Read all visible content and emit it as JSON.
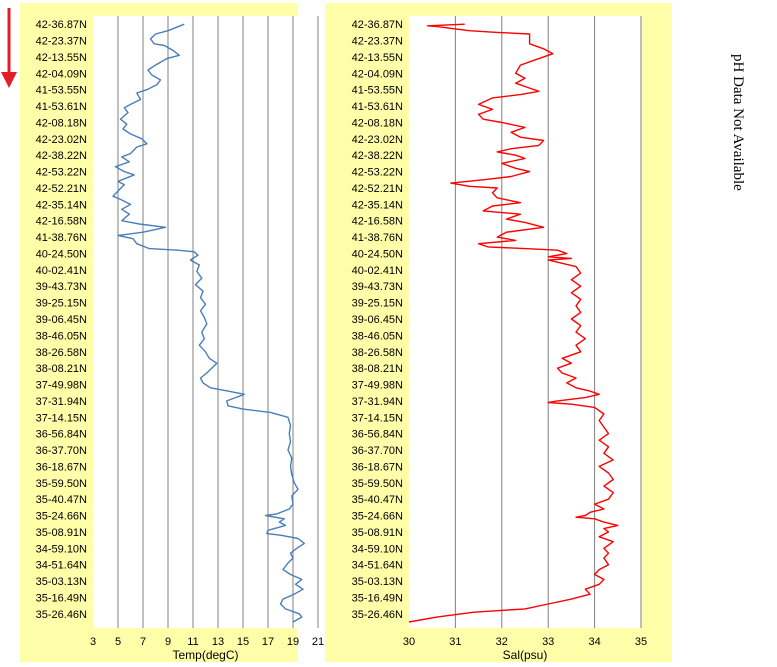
{
  "chart_data": [
    {
      "type": "line",
      "xlabel": "Temp(degC)",
      "xlim": [
        3,
        21
      ],
      "xticks": [
        3,
        5,
        7,
        9,
        11,
        13,
        15,
        17,
        19,
        21
      ],
      "ylabel": "",
      "ycategories": [
        "42-36.87N",
        "42-23.37N",
        "42-13.55N",
        "42-04.09N",
        "41-53.55N",
        "41-53.61N",
        "42-08.18N",
        "42-23.02N",
        "42-38.22N",
        "42-53.22N",
        "42-52.21N",
        "42-35.14N",
        "42-16.58N",
        "41-38.76N",
        "40-24.50N",
        "40-02.41N",
        "39-43.73N",
        "39-25.15N",
        "39-06.45N",
        "38-46.05N",
        "38-26.58N",
        "38-08.21N",
        "37-49.98N",
        "37-31.94N",
        "37-14.15N",
        "36-56.84N",
        "36-37.70N",
        "36-18.67N",
        "35-59.50N",
        "35-40.47N",
        "35-24.66N",
        "35-08.91N",
        "34-59.10N",
        "34-51.64N",
        "35-03.13N",
        "35-16.49N",
        "35-26.46N"
      ],
      "series": [
        {
          "color": "#4A7EBB",
          "points": [
            [
              10.3,
              0
            ],
            [
              9.0,
              0.4
            ],
            [
              8.0,
              0.6
            ],
            [
              7.6,
              0.9
            ],
            [
              7.9,
              1.2
            ],
            [
              8.7,
              1.3
            ],
            [
              9.4,
              1.6
            ],
            [
              9.9,
              1.9
            ],
            [
              8.9,
              2.1
            ],
            [
              8.0,
              2.5
            ],
            [
              7.4,
              2.8
            ],
            [
              7.7,
              3.1
            ],
            [
              8.4,
              3.4
            ],
            [
              8.1,
              3.7
            ],
            [
              7.3,
              4.0
            ],
            [
              6.5,
              4.2
            ],
            [
              6.8,
              4.6
            ],
            [
              6.0,
              4.9
            ],
            [
              5.5,
              5.1
            ],
            [
              5.8,
              5.4
            ],
            [
              5.2,
              5.8
            ],
            [
              5.7,
              6.1
            ],
            [
              5.4,
              6.4
            ],
            [
              6.0,
              6.7
            ],
            [
              6.9,
              7.0
            ],
            [
              7.3,
              7.3
            ],
            [
              6.5,
              7.5
            ],
            [
              6.0,
              7.9
            ],
            [
              5.3,
              8.1
            ],
            [
              5.9,
              8.4
            ],
            [
              4.8,
              8.7
            ],
            [
              5.5,
              9.0
            ],
            [
              6.3,
              9.2
            ],
            [
              5.0,
              9.6
            ],
            [
              5.5,
              9.8
            ],
            [
              5.1,
              10.1
            ],
            [
              4.6,
              10.5
            ],
            [
              5.2,
              10.7
            ],
            [
              6.0,
              11.0
            ],
            [
              5.3,
              11.3
            ],
            [
              5.9,
              11.6
            ],
            [
              5.3,
              12.0
            ],
            [
              6.7,
              12.2
            ],
            [
              8.8,
              12.4
            ],
            [
              7.0,
              12.7
            ],
            [
              5.0,
              12.9
            ],
            [
              6.2,
              13.1
            ],
            [
              6.5,
              13.4
            ],
            [
              7.5,
              13.7
            ],
            [
              9.8,
              13.8
            ],
            [
              11.1,
              13.9
            ],
            [
              11.4,
              14.1
            ],
            [
              10.8,
              14.4
            ],
            [
              11.5,
              14.7
            ],
            [
              11.3,
              15.1
            ],
            [
              11.7,
              15.5
            ],
            [
              11.2,
              15.9
            ],
            [
              11.8,
              16.3
            ],
            [
              11.6,
              16.7
            ],
            [
              12.0,
              17.1
            ],
            [
              11.6,
              17.5
            ],
            [
              11.9,
              17.9
            ],
            [
              12.1,
              18.3
            ],
            [
              11.7,
              18.8
            ],
            [
              11.9,
              19.2
            ],
            [
              11.5,
              19.6
            ],
            [
              12.0,
              20.0
            ],
            [
              12.3,
              20.4
            ],
            [
              12.9,
              20.7
            ],
            [
              12.5,
              21.0
            ],
            [
              12.1,
              21.3
            ],
            [
              11.6,
              21.6
            ],
            [
              11.8,
              21.9
            ],
            [
              12.4,
              22.2
            ],
            [
              13.8,
              22.4
            ],
            [
              15.1,
              22.6
            ],
            [
              14.4,
              22.8
            ],
            [
              13.7,
              23.0
            ],
            [
              13.8,
              23.3
            ],
            [
              15.0,
              23.5
            ],
            [
              17.2,
              23.7
            ],
            [
              18.6,
              24.0
            ],
            [
              18.8,
              24.5
            ],
            [
              18.7,
              25.0
            ],
            [
              18.8,
              25.5
            ],
            [
              18.6,
              26.0
            ],
            [
              18.9,
              26.5
            ],
            [
              18.8,
              27.0
            ],
            [
              18.9,
              27.5
            ],
            [
              19.1,
              28.0
            ],
            [
              19.4,
              28.4
            ],
            [
              18.9,
              28.8
            ],
            [
              19.0,
              29.3
            ],
            [
              18.7,
              29.6
            ],
            [
              17.7,
              29.9
            ],
            [
              16.8,
              30.0
            ],
            [
              18.3,
              30.2
            ],
            [
              17.9,
              30.4
            ],
            [
              18.4,
              30.6
            ],
            [
              17.0,
              30.9
            ],
            [
              16.9,
              31.1
            ],
            [
              18.0,
              31.2
            ],
            [
              19.4,
              31.4
            ],
            [
              19.9,
              31.7
            ],
            [
              19.3,
              32.0
            ],
            [
              18.8,
              32.3
            ],
            [
              19.0,
              32.6
            ],
            [
              18.6,
              32.9
            ],
            [
              18.2,
              33.3
            ],
            [
              18.8,
              33.6
            ],
            [
              19.7,
              33.9
            ],
            [
              19.2,
              34.2
            ],
            [
              19.8,
              34.5
            ],
            [
              19.1,
              34.8
            ],
            [
              18.2,
              35.1
            ],
            [
              18.0,
              35.4
            ],
            [
              18.4,
              35.7
            ],
            [
              19.5,
              36.0
            ],
            [
              19.7,
              36.2
            ],
            [
              19.0,
              36.5
            ]
          ]
        }
      ]
    },
    {
      "type": "line",
      "xlabel": "Sal(psu)",
      "xlim": [
        30,
        35
      ],
      "xticks": [
        30,
        31,
        32,
        33,
        34,
        35
      ],
      "ylabel": "",
      "ycategories": [
        "42-36.87N",
        "42-23.37N",
        "42-13.55N",
        "42-04.09N",
        "41-53.55N",
        "41-53.61N",
        "42-08.18N",
        "42-23.02N",
        "42-38.22N",
        "42-53.22N",
        "42-52.21N",
        "42-35.14N",
        "42-16.58N",
        "41-38.76N",
        "40-24.50N",
        "40-02.41N",
        "39-43.73N",
        "39-25.15N",
        "39-06.45N",
        "38-46.05N",
        "38-26.58N",
        "38-08.21N",
        "37-49.98N",
        "37-31.94N",
        "37-14.15N",
        "36-56.84N",
        "36-37.70N",
        "36-18.67N",
        "35-59.50N",
        "35-40.47N",
        "35-24.66N",
        "35-08.91N",
        "34-59.10N",
        "34-51.64N",
        "35-03.13N",
        "35-16.49N",
        "35-26.46N"
      ],
      "series": [
        {
          "color": "#FF0000",
          "points": [
            [
              31.2,
              0
            ],
            [
              30.4,
              0.1
            ],
            [
              30.6,
              0.15
            ],
            [
              31.3,
              0.4
            ],
            [
              31.9,
              0.5
            ],
            [
              32.6,
              0.6
            ],
            [
              32.6,
              1.2
            ],
            [
              32.9,
              1.5
            ],
            [
              33.1,
              1.8
            ],
            [
              32.7,
              2.2
            ],
            [
              32.4,
              2.5
            ],
            [
              32.3,
              3.0
            ],
            [
              32.5,
              3.3
            ],
            [
              32.3,
              3.6
            ],
            [
              32.6,
              3.9
            ],
            [
              32.8,
              4.1
            ],
            [
              32.4,
              4.3
            ],
            [
              31.8,
              4.5
            ],
            [
              31.5,
              4.9
            ],
            [
              31.8,
              5.2
            ],
            [
              31.5,
              5.5
            ],
            [
              31.6,
              5.8
            ],
            [
              32.0,
              6.0
            ],
            [
              32.5,
              6.3
            ],
            [
              32.2,
              6.6
            ],
            [
              32.4,
              6.9
            ],
            [
              32.9,
              7.1
            ],
            [
              32.8,
              7.4
            ],
            [
              32.2,
              7.6
            ],
            [
              31.9,
              7.8
            ],
            [
              32.3,
              8.0
            ],
            [
              32.5,
              8.2
            ],
            [
              32.0,
              8.5
            ],
            [
              32.3,
              8.8
            ],
            [
              32.6,
              9.0
            ],
            [
              32.2,
              9.3
            ],
            [
              31.6,
              9.5
            ],
            [
              30.9,
              9.7
            ],
            [
              31.3,
              9.9
            ],
            [
              31.9,
              10.0
            ],
            [
              31.8,
              10.3
            ],
            [
              31.9,
              10.6
            ],
            [
              32.4,
              10.9
            ],
            [
              31.8,
              11.1
            ],
            [
              31.6,
              11.4
            ],
            [
              32.4,
              11.6
            ],
            [
              32.1,
              11.9
            ],
            [
              32.5,
              12.1
            ],
            [
              32.9,
              12.4
            ],
            [
              32.1,
              12.7
            ],
            [
              31.9,
              13.0
            ],
            [
              32.3,
              13.2
            ],
            [
              31.5,
              13.4
            ],
            [
              31.7,
              13.6
            ],
            [
              32.5,
              13.7
            ],
            [
              33.2,
              13.8
            ],
            [
              33.4,
              14.0
            ],
            [
              33.0,
              14.2
            ],
            [
              33.5,
              14.3
            ],
            [
              33.0,
              14.4
            ],
            [
              33.3,
              14.6
            ],
            [
              33.6,
              14.8
            ],
            [
              33.7,
              15.2
            ],
            [
              33.5,
              15.6
            ],
            [
              33.7,
              16.0
            ],
            [
              33.5,
              16.4
            ],
            [
              33.7,
              16.8
            ],
            [
              33.6,
              17.2
            ],
            [
              33.7,
              17.6
            ],
            [
              33.5,
              18.0
            ],
            [
              33.7,
              18.4
            ],
            [
              33.6,
              18.8
            ],
            [
              33.8,
              19.2
            ],
            [
              33.6,
              19.6
            ],
            [
              33.7,
              20.0
            ],
            [
              33.3,
              20.4
            ],
            [
              33.5,
              20.7
            ],
            [
              33.2,
              21.0
            ],
            [
              33.3,
              21.3
            ],
            [
              33.6,
              21.6
            ],
            [
              33.4,
              21.9
            ],
            [
              33.6,
              22.2
            ],
            [
              33.9,
              22.4
            ],
            [
              34.1,
              22.6
            ],
            [
              33.8,
              22.8
            ],
            [
              33.2,
              23.0
            ],
            [
              33.0,
              23.1
            ],
            [
              33.5,
              23.2
            ],
            [
              34.0,
              23.4
            ],
            [
              34.2,
              23.8
            ],
            [
              34.1,
              24.2
            ],
            [
              34.2,
              24.6
            ],
            [
              34.3,
              25.0
            ],
            [
              34.1,
              25.4
            ],
            [
              34.3,
              25.8
            ],
            [
              34.2,
              26.2
            ],
            [
              34.4,
              26.6
            ],
            [
              34.1,
              27.0
            ],
            [
              34.3,
              27.4
            ],
            [
              34.4,
              27.8
            ],
            [
              34.2,
              28.2
            ],
            [
              34.4,
              28.6
            ],
            [
              34.3,
              29.0
            ],
            [
              34.0,
              29.3
            ],
            [
              34.2,
              29.6
            ],
            [
              33.9,
              29.8
            ],
            [
              33.8,
              30.0
            ],
            [
              33.6,
              30.1
            ],
            [
              34.0,
              30.2
            ],
            [
              34.2,
              30.4
            ],
            [
              34.5,
              30.6
            ],
            [
              34.2,
              30.8
            ],
            [
              34.3,
              31.0
            ],
            [
              34.1,
              31.3
            ],
            [
              34.4,
              31.6
            ],
            [
              34.2,
              32.0
            ],
            [
              34.3,
              32.3
            ],
            [
              34.2,
              32.6
            ],
            [
              34.3,
              33.0
            ],
            [
              34.1,
              33.3
            ],
            [
              34.0,
              33.6
            ],
            [
              34.2,
              33.9
            ],
            [
              34.1,
              34.2
            ],
            [
              33.8,
              34.5
            ],
            [
              33.9,
              34.8
            ],
            [
              33.5,
              35.1
            ],
            [
              33.0,
              35.4
            ],
            [
              32.5,
              35.7
            ],
            [
              31.4,
              35.9
            ],
            [
              30.6,
              36.2
            ],
            [
              30.0,
              36.5
            ]
          ]
        }
      ]
    }
  ],
  "side_note": "pH Data Not Available",
  "colors": {
    "panel_bg": "#FFFFAA",
    "plot_bg": "#FFFFFF",
    "grid": "#808080",
    "arrow": "#E31E24"
  },
  "icons": {
    "direction": "down-arrow-icon"
  }
}
